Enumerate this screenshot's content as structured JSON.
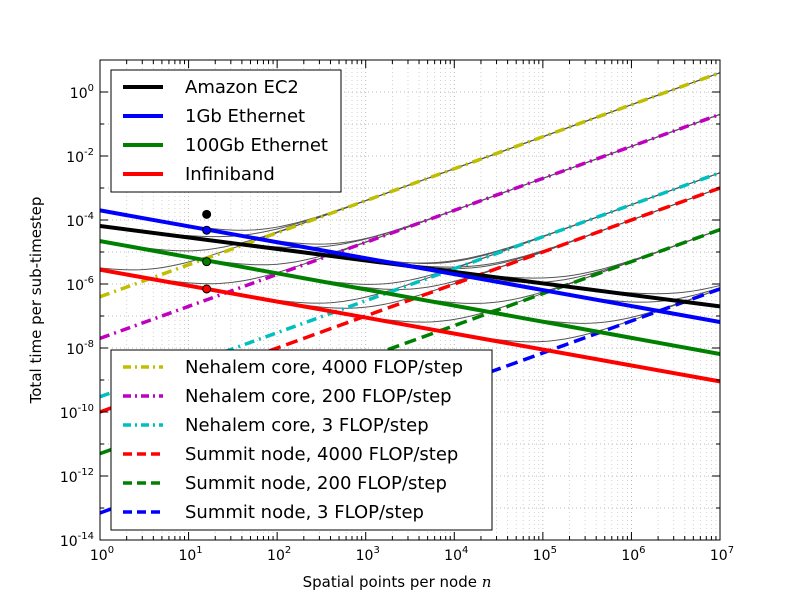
{
  "chart_data": {
    "type": "line",
    "xlabel": "Spatial points per node",
    "xlabel_var": "n",
    "ylabel": "Total time per sub-timestep",
    "xscale": "log",
    "yscale": "log",
    "xlim": [
      1,
      10000000
    ],
    "ylim": [
      1e-14,
      10
    ],
    "grid": true,
    "x_ticks": [
      {
        "base": "10",
        "exp": "0"
      },
      {
        "base": "10",
        "exp": "1"
      },
      {
        "base": "10",
        "exp": "2"
      },
      {
        "base": "10",
        "exp": "3"
      },
      {
        "base": "10",
        "exp": "4"
      },
      {
        "base": "10",
        "exp": "5"
      },
      {
        "base": "10",
        "exp": "6"
      },
      {
        "base": "10",
        "exp": "7"
      }
    ],
    "y_ticks": [
      {
        "base": "10",
        "exp": "0"
      },
      {
        "base": "10",
        "exp": "-2"
      },
      {
        "base": "10",
        "exp": "-4"
      },
      {
        "base": "10",
        "exp": "-6"
      },
      {
        "base": "10",
        "exp": "-8"
      },
      {
        "base": "10",
        "exp": "-10"
      },
      {
        "base": "10",
        "exp": "-12"
      },
      {
        "base": "10",
        "exp": "-14"
      }
    ],
    "legend_network_position": "upper-left",
    "legend_compute_position": "lower-left",
    "network_series": [
      {
        "name": "Amazon EC2",
        "color": "#000000",
        "style": "solid",
        "x": [
          1,
          10000000
        ],
        "y": [
          6.5e-05,
          2e-07
        ],
        "marker_x": 16,
        "marker_y": 0.00015
      },
      {
        "name": "1Gb Ethernet",
        "color": "#0000ff",
        "style": "solid",
        "x": [
          1,
          10000000
        ],
        "y": [
          0.0002,
          6.5e-08
        ],
        "marker_x": 16,
        "marker_y": 4.8e-05
      },
      {
        "name": "100Gb Ethernet",
        "color": "#008000",
        "style": "solid",
        "x": [
          1,
          10000000
        ],
        "y": [
          2.2e-05,
          6.5e-09
        ],
        "marker_x": 16,
        "marker_y": 5e-06
      },
      {
        "name": "Infiniband",
        "color": "#ff0000",
        "style": "solid",
        "x": [
          1,
          10000000
        ],
        "y": [
          2.8e-06,
          9e-10
        ],
        "marker_x": 16,
        "marker_y": 7e-07
      }
    ],
    "compute_series": [
      {
        "name": "Nehalem core, 4000 FLOP/step",
        "color": "#bfbf00",
        "style": "dashdot",
        "x": [
          1,
          10000000
        ],
        "y": [
          4e-07,
          4
        ]
      },
      {
        "name": "Nehalem core, 200 FLOP/step",
        "color": "#bf00bf",
        "style": "dashdot",
        "x": [
          1,
          10000000
        ],
        "y": [
          2e-08,
          0.2
        ]
      },
      {
        "name": "Nehalem core, 3 FLOP/step",
        "color": "#00bfbf",
        "style": "dashdot",
        "x": [
          1,
          10000000
        ],
        "y": [
          3e-10,
          0.003
        ]
      },
      {
        "name": "Summit node, 4000 FLOP/step",
        "color": "#ff0000",
        "style": "dashed",
        "x": [
          1,
          10000000
        ],
        "y": [
          1e-10,
          0.001
        ]
      },
      {
        "name": "Summit node, 200 FLOP/step",
        "color": "#008000",
        "style": "dashed",
        "x": [
          1,
          10000000
        ],
        "y": [
          5e-12,
          5e-05
        ]
      },
      {
        "name": "Summit node, 3 FLOP/step",
        "color": "#0000ff",
        "style": "dashed",
        "x": [
          1,
          10000000
        ],
        "y": [
          7e-14,
          7e-07
        ]
      }
    ],
    "sum_curves_color": "#555555"
  }
}
